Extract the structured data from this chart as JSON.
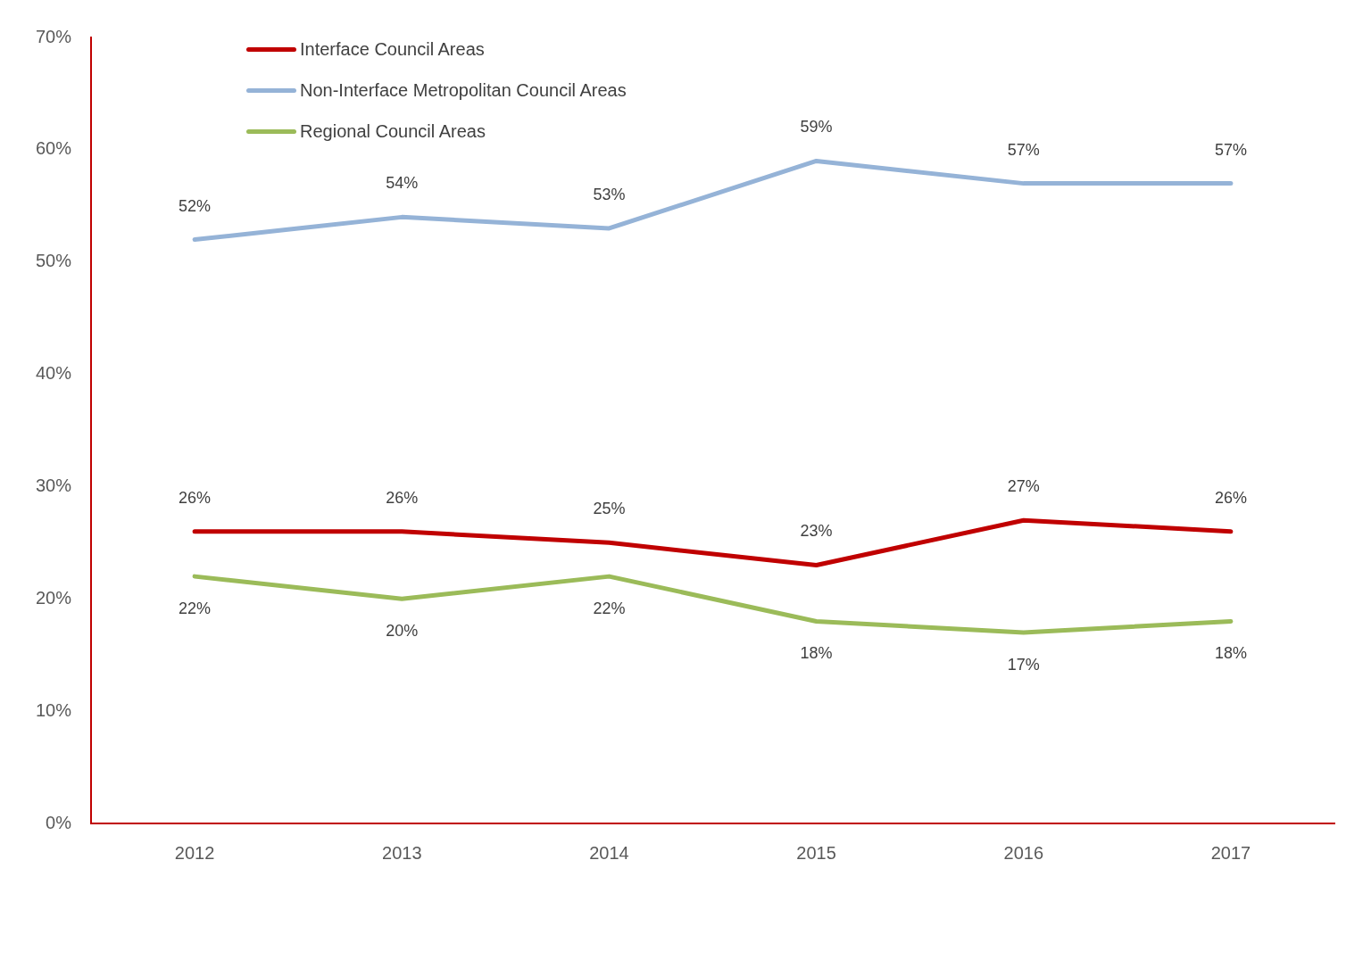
{
  "chart_data": {
    "type": "line",
    "categories": [
      "2012",
      "2013",
      "2014",
      "2015",
      "2016",
      "2017"
    ],
    "series": [
      {
        "name": "Interface Council Areas",
        "color": "#c00000",
        "values": [
          26,
          26,
          25,
          23,
          27,
          26
        ],
        "value_labels": [
          "26%",
          "26%",
          "25%",
          "23%",
          "27%",
          "26%"
        ]
      },
      {
        "name": "Non-Interface Metropolitan Council Areas",
        "color": "#95b3d7",
        "values": [
          52,
          54,
          53,
          59,
          57,
          57
        ],
        "value_labels": [
          "52%",
          "54%",
          "53%",
          "59%",
          "57%",
          "57%"
        ]
      },
      {
        "name": "Regional Council Areas",
        "color": "#9bbb59",
        "values": [
          22,
          20,
          22,
          18,
          17,
          18
        ],
        "value_labels": [
          "22%",
          "20%",
          "22%",
          "18%",
          "17%",
          "18%"
        ]
      }
    ],
    "ylim": [
      0,
      70
    ],
    "yticks": [
      {
        "value": 0,
        "label": "0%"
      },
      {
        "value": 10,
        "label": "10%"
      },
      {
        "value": 20,
        "label": "20%"
      },
      {
        "value": 30,
        "label": "30%"
      },
      {
        "value": 40,
        "label": "40%"
      },
      {
        "value": 50,
        "label": "50%"
      },
      {
        "value": 60,
        "label": "60%"
      },
      {
        "value": 70,
        "label": "70%"
      }
    ],
    "grid": false,
    "legend": "top left",
    "marker": "none",
    "line_style": "solid"
  }
}
